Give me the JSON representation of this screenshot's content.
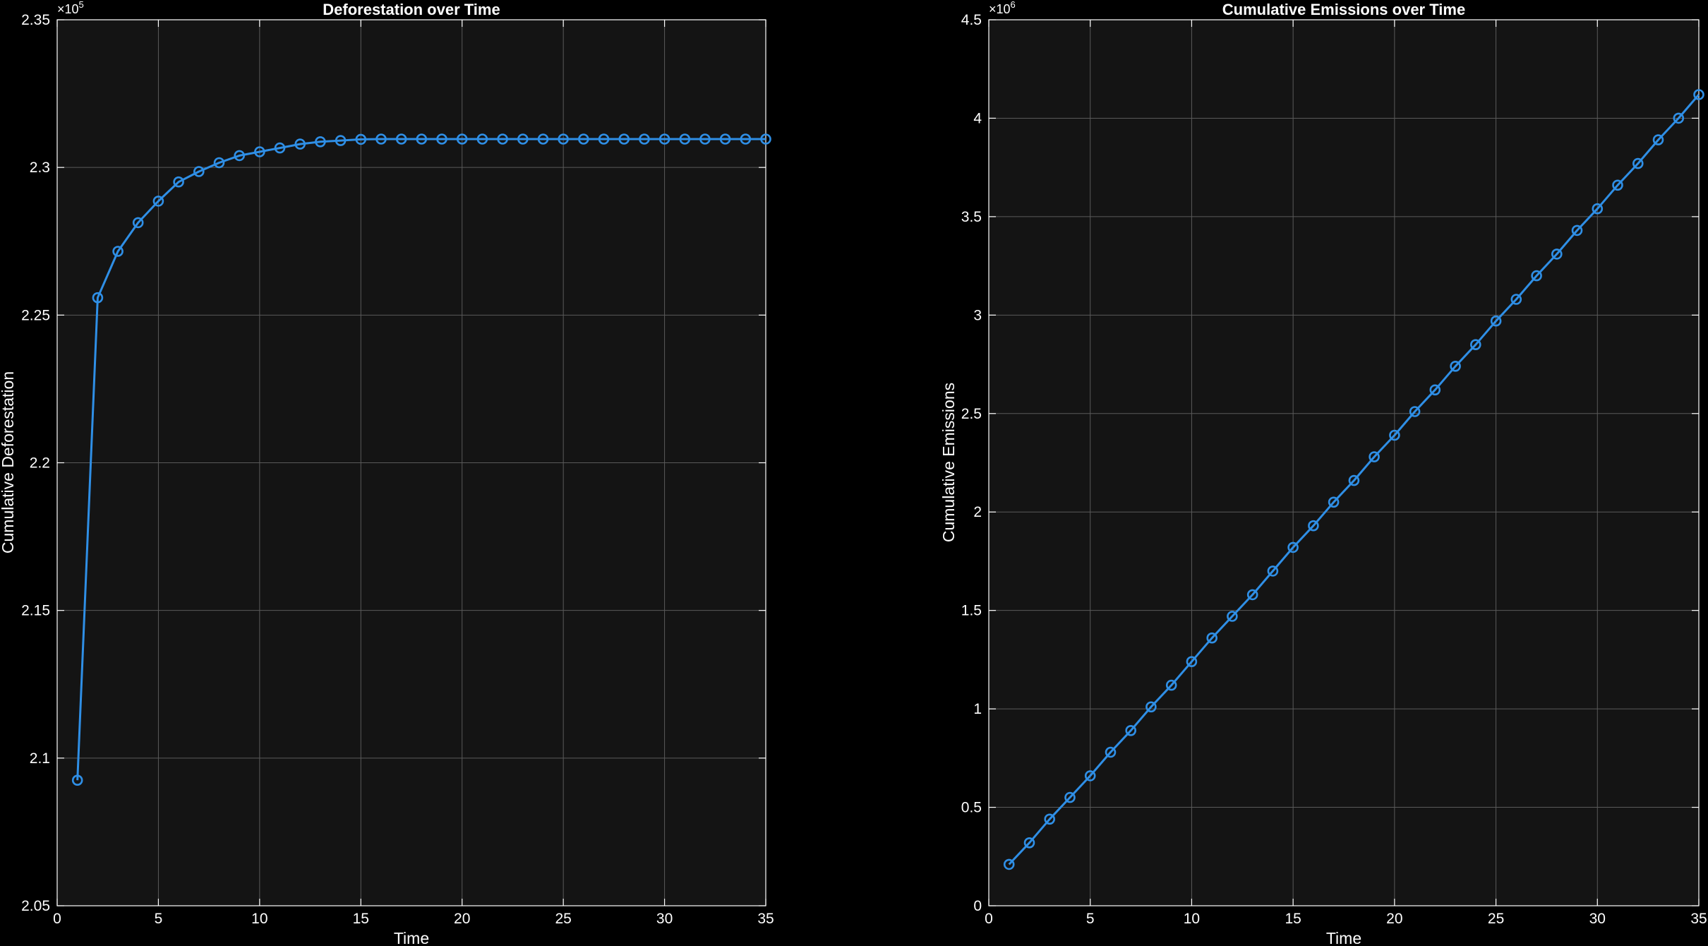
{
  "colors": {
    "background": "#000000",
    "plot_background": "#141414",
    "series": "#2f8fe6"
  },
  "chart_data": [
    {
      "type": "line",
      "title": "Deforestation over Time",
      "xlabel": "Time",
      "ylabel": "Cumulative Deforestation",
      "y_exponent_base": "×10",
      "y_exponent_power": "5",
      "xlim": [
        0,
        35
      ],
      "ylim": [
        2.05,
        2.35
      ],
      "xticks": [
        0,
        5,
        10,
        15,
        20,
        25,
        30,
        35
      ],
      "xtick_labels": [
        "0",
        "5",
        "10",
        "15",
        "20",
        "25",
        "30",
        "35"
      ],
      "yticks": [
        2.05,
        2.1,
        2.15,
        2.2,
        2.25,
        2.3,
        2.35
      ],
      "ytick_labels": [
        "2.05",
        "2.1",
        "2.15",
        "2.2",
        "2.25",
        "2.3",
        "2.35"
      ],
      "grid": true,
      "marker": "circle",
      "x": [
        1,
        2,
        3,
        4,
        5,
        6,
        7,
        8,
        9,
        10,
        11,
        12,
        13,
        14,
        15,
        16,
        17,
        18,
        19,
        20,
        21,
        22,
        23,
        24,
        25,
        26,
        27,
        28,
        29,
        30,
        31,
        32,
        33,
        34,
        35
      ],
      "y": [
        2.0925,
        2.2559,
        2.2716,
        2.2813,
        2.2886,
        2.2951,
        2.2986,
        2.3016,
        2.304,
        2.3053,
        2.3066,
        2.3079,
        2.3087,
        2.3091,
        2.3095,
        2.3096,
        2.3096,
        2.3096,
        2.3096,
        2.3096,
        2.3096,
        2.3096,
        2.3096,
        2.3096,
        2.3096,
        2.3096,
        2.3096,
        2.3096,
        2.3096,
        2.3096,
        2.3096,
        2.3096,
        2.3096,
        2.3096,
        2.3096
      ]
    },
    {
      "type": "line",
      "title": "Cumulative Emissions over Time",
      "xlabel": "Time",
      "ylabel": "Cumulative Emissions",
      "y_exponent_base": "×10",
      "y_exponent_power": "6",
      "xlim": [
        0,
        35
      ],
      "ylim": [
        0,
        4.5
      ],
      "xticks": [
        0,
        5,
        10,
        15,
        20,
        25,
        30,
        35
      ],
      "xtick_labels": [
        "0",
        "5",
        "10",
        "15",
        "20",
        "25",
        "30",
        "35"
      ],
      "yticks": [
        0,
        0.5,
        1,
        1.5,
        2,
        2.5,
        3,
        3.5,
        4,
        4.5
      ],
      "ytick_labels": [
        "0",
        "0.5",
        "1",
        "1.5",
        "2",
        "2.5",
        "3",
        "3.5",
        "4",
        "4.5"
      ],
      "grid": true,
      "marker": "circle",
      "x": [
        1,
        2,
        3,
        4,
        5,
        6,
        7,
        8,
        9,
        10,
        11,
        12,
        13,
        14,
        15,
        16,
        17,
        18,
        19,
        20,
        21,
        22,
        23,
        24,
        25,
        26,
        27,
        28,
        29,
        30,
        31,
        32,
        33,
        34,
        35
      ],
      "y": [
        0.21,
        0.32,
        0.44,
        0.55,
        0.66,
        0.78,
        0.89,
        1.01,
        1.12,
        1.24,
        1.36,
        1.47,
        1.58,
        1.7,
        1.82,
        1.93,
        2.05,
        2.16,
        2.28,
        2.39,
        2.51,
        2.62,
        2.74,
        2.85,
        2.97,
        3.08,
        3.2,
        3.31,
        3.43,
        3.54,
        3.66,
        3.77,
        3.89,
        4.0,
        4.12
      ]
    }
  ]
}
